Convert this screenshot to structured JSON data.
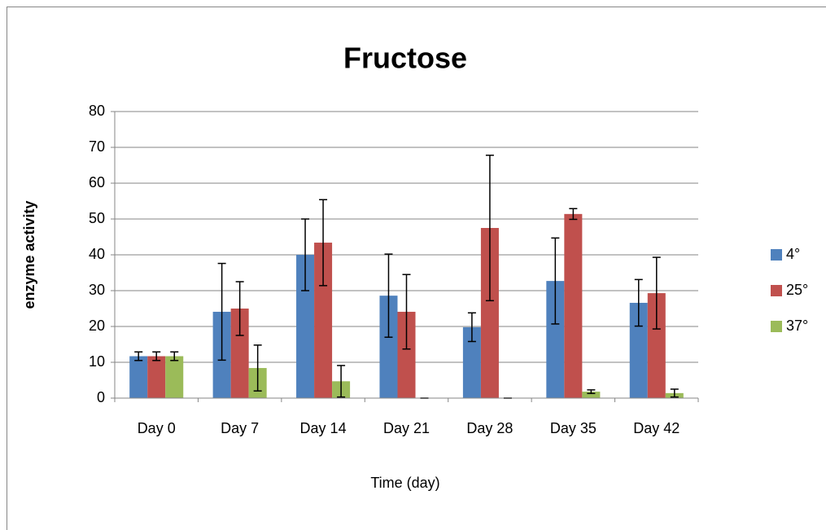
{
  "chart_data": {
    "type": "bar",
    "title": "Fructose",
    "x_label": "Time (day)",
    "y_label": "enzyme activity",
    "categories": [
      "Day 0",
      "Day 7",
      "Day 14",
      "Day 21",
      "Day 28",
      "Day 35",
      "Day 42"
    ],
    "series": [
      {
        "name": "4°",
        "color": "#4f81bd",
        "values": [
          11.7,
          24.1,
          40,
          28.6,
          19.8,
          32.7,
          26.6
        ],
        "errors": [
          1.2,
          13.5,
          10,
          11.6,
          4,
          12,
          6.5
        ]
      },
      {
        "name": "25°",
        "color": "#c0504d",
        "values": [
          11.7,
          25,
          43.4,
          24.1,
          47.5,
          51.4,
          29.3
        ],
        "errors": [
          1.2,
          7.5,
          12,
          10.4,
          20.3,
          1.5,
          10
        ]
      },
      {
        "name": "37°",
        "color": "#9bbb59",
        "values": [
          11.7,
          8.4,
          4.7,
          0,
          0,
          1.8,
          1.4
        ],
        "errors": [
          1.2,
          6.4,
          4.4,
          0,
          0,
          0.5,
          1.1
        ]
      }
    ],
    "ylim": [
      0,
      80
    ],
    "yticks": [
      0,
      10,
      20,
      30,
      40,
      50,
      60,
      70,
      80
    ],
    "grid": true,
    "legend": "right"
  }
}
